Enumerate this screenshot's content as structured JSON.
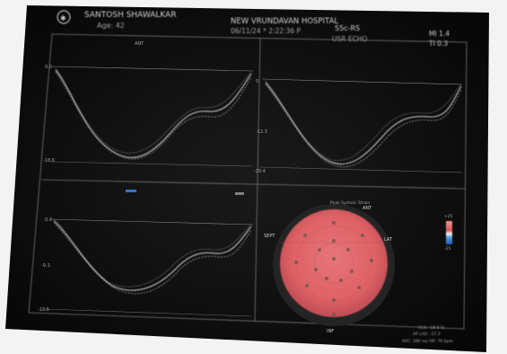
{
  "header": {
    "patient_name": "SANTOSH SHAWALKAR",
    "age": "Age: 42",
    "hospital": "NEW VRUNDAVAN HOSPITAL",
    "probe": "S5c-RS",
    "datetime": "06/11/24 * 2:22:36 P",
    "mode": "USR ECHO",
    "mi": "MI 1.4",
    "ti": "TI 0.3"
  },
  "panels": {
    "top_left_title": "ANT",
    "top_left_v1": "0.0",
    "top_left_v2": "-18.6",
    "top_right_v1": "0",
    "top_right_v2": "-12.3",
    "top_right_v3": "-20.4",
    "bottom_left_v1": "0.0",
    "bottom_left_v2": "-9.3",
    "bottom_left_v3": "-18.6"
  },
  "bullseye": {
    "title": "Peak Systolic Strain",
    "label_left": "SEPT",
    "label_right": "LAT",
    "label_bottom": "INF",
    "label_top": "ANT"
  },
  "colorbar": {
    "top_label": "+25",
    "bottom_label": "-25"
  },
  "footer": {
    "line1": "GLS: -18.6 %",
    "line2": "AP LAX: -17.3",
    "line3": "AVC: 396 ms  HR: 76 bpm"
  },
  "colors": {
    "screen_background": "#141414",
    "frame_background": "#050505",
    "trace_line": "#cfcfcf",
    "bullseye_fill": "#e8666b",
    "bullseye_ring": "#1f1f1f"
  }
}
